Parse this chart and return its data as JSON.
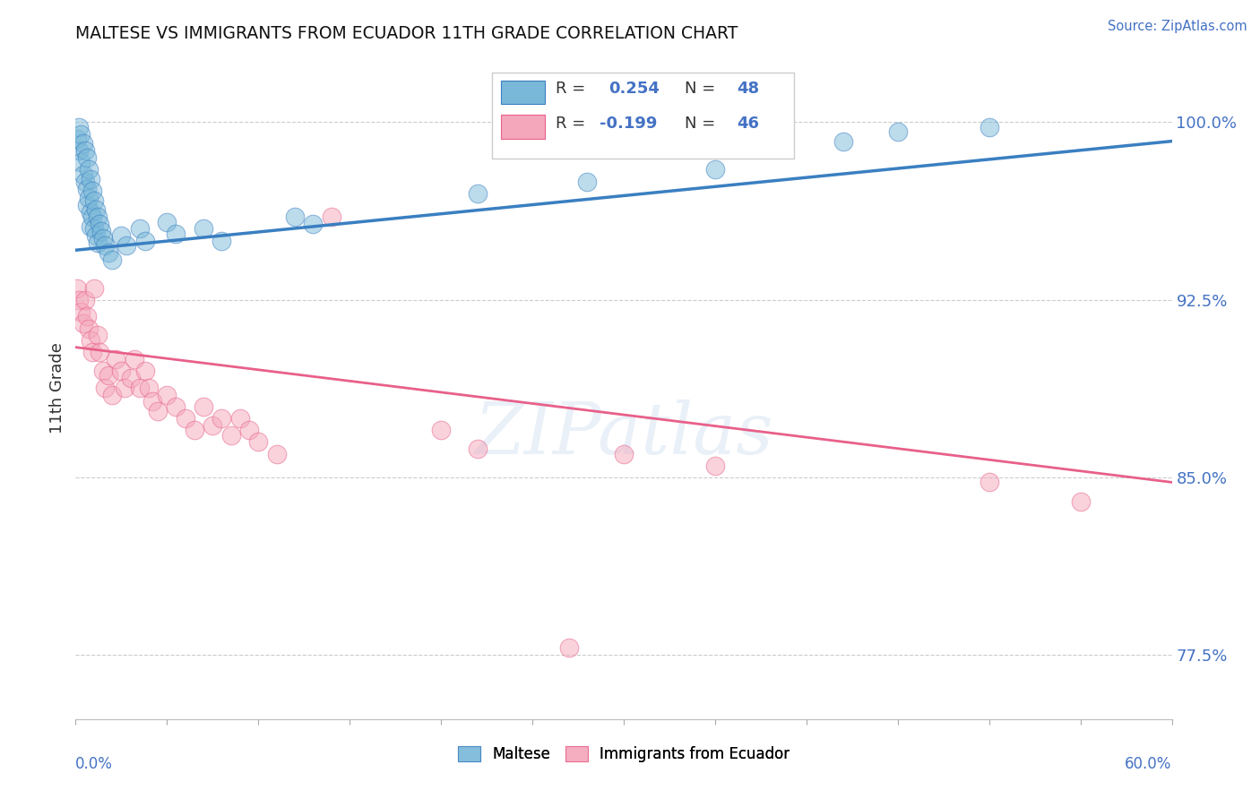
{
  "title": "MALTESE VS IMMIGRANTS FROM ECUADOR 11TH GRADE CORRELATION CHART",
  "source_text": "Source: ZipAtlas.com",
  "ylabel": "11th Grade",
  "xmin": 0.0,
  "xmax": 0.6,
  "ymin": 0.748,
  "ymax": 1.028,
  "yticks": [
    0.775,
    0.85,
    0.925,
    1.0
  ],
  "ytick_labels": [
    "77.5%",
    "85.0%",
    "92.5%",
    "100.0%"
  ],
  "watermark": "ZIPatlas",
  "blue_color": "#7ab8d9",
  "pink_color": "#f4a7bb",
  "blue_line_color": "#3a7fc1",
  "pink_line_color": "#e8608a",
  "blue_scatter": [
    [
      0.001,
      0.993
    ],
    [
      0.002,
      0.998
    ],
    [
      0.002,
      0.988
    ],
    [
      0.003,
      0.995
    ],
    [
      0.003,
      0.983
    ],
    [
      0.004,
      0.991
    ],
    [
      0.004,
      0.978
    ],
    [
      0.005,
      0.988
    ],
    [
      0.005,
      0.975
    ],
    [
      0.006,
      0.985
    ],
    [
      0.006,
      0.972
    ],
    [
      0.006,
      0.965
    ],
    [
      0.007,
      0.98
    ],
    [
      0.007,
      0.968
    ],
    [
      0.008,
      0.976
    ],
    [
      0.008,
      0.962
    ],
    [
      0.008,
      0.956
    ],
    [
      0.009,
      0.971
    ],
    [
      0.009,
      0.96
    ],
    [
      0.01,
      0.967
    ],
    [
      0.01,
      0.955
    ],
    [
      0.011,
      0.963
    ],
    [
      0.011,
      0.952
    ],
    [
      0.012,
      0.96
    ],
    [
      0.012,
      0.949
    ],
    [
      0.013,
      0.957
    ],
    [
      0.014,
      0.954
    ],
    [
      0.015,
      0.951
    ],
    [
      0.016,
      0.948
    ],
    [
      0.018,
      0.945
    ],
    [
      0.02,
      0.942
    ],
    [
      0.025,
      0.952
    ],
    [
      0.028,
      0.948
    ],
    [
      0.035,
      0.955
    ],
    [
      0.038,
      0.95
    ],
    [
      0.05,
      0.958
    ],
    [
      0.055,
      0.953
    ],
    [
      0.07,
      0.955
    ],
    [
      0.08,
      0.95
    ],
    [
      0.12,
      0.96
    ],
    [
      0.13,
      0.957
    ],
    [
      0.22,
      0.97
    ],
    [
      0.28,
      0.975
    ],
    [
      0.35,
      0.98
    ],
    [
      0.38,
      0.99
    ],
    [
      0.42,
      0.992
    ],
    [
      0.45,
      0.996
    ],
    [
      0.5,
      0.998
    ]
  ],
  "pink_scatter": [
    [
      0.001,
      0.93
    ],
    [
      0.002,
      0.925
    ],
    [
      0.003,
      0.92
    ],
    [
      0.004,
      0.915
    ],
    [
      0.005,
      0.925
    ],
    [
      0.006,
      0.918
    ],
    [
      0.007,
      0.913
    ],
    [
      0.008,
      0.908
    ],
    [
      0.009,
      0.903
    ],
    [
      0.01,
      0.93
    ],
    [
      0.012,
      0.91
    ],
    [
      0.013,
      0.903
    ],
    [
      0.015,
      0.895
    ],
    [
      0.016,
      0.888
    ],
    [
      0.018,
      0.893
    ],
    [
      0.02,
      0.885
    ],
    [
      0.022,
      0.9
    ],
    [
      0.025,
      0.895
    ],
    [
      0.027,
      0.888
    ],
    [
      0.03,
      0.892
    ],
    [
      0.032,
      0.9
    ],
    [
      0.035,
      0.888
    ],
    [
      0.038,
      0.895
    ],
    [
      0.04,
      0.888
    ],
    [
      0.042,
      0.882
    ],
    [
      0.045,
      0.878
    ],
    [
      0.05,
      0.885
    ],
    [
      0.055,
      0.88
    ],
    [
      0.06,
      0.875
    ],
    [
      0.065,
      0.87
    ],
    [
      0.07,
      0.88
    ],
    [
      0.075,
      0.872
    ],
    [
      0.08,
      0.875
    ],
    [
      0.085,
      0.868
    ],
    [
      0.09,
      0.875
    ],
    [
      0.095,
      0.87
    ],
    [
      0.1,
      0.865
    ],
    [
      0.11,
      0.86
    ],
    [
      0.14,
      0.96
    ],
    [
      0.2,
      0.87
    ],
    [
      0.22,
      0.862
    ],
    [
      0.27,
      0.778
    ],
    [
      0.3,
      0.86
    ],
    [
      0.35,
      0.855
    ],
    [
      0.5,
      0.848
    ],
    [
      0.55,
      0.84
    ]
  ],
  "blue_line_x": [
    0.0,
    0.6
  ],
  "blue_line_y": [
    0.946,
    0.992
  ],
  "pink_line_x": [
    0.0,
    0.6
  ],
  "pink_line_y": [
    0.905,
    0.848
  ]
}
